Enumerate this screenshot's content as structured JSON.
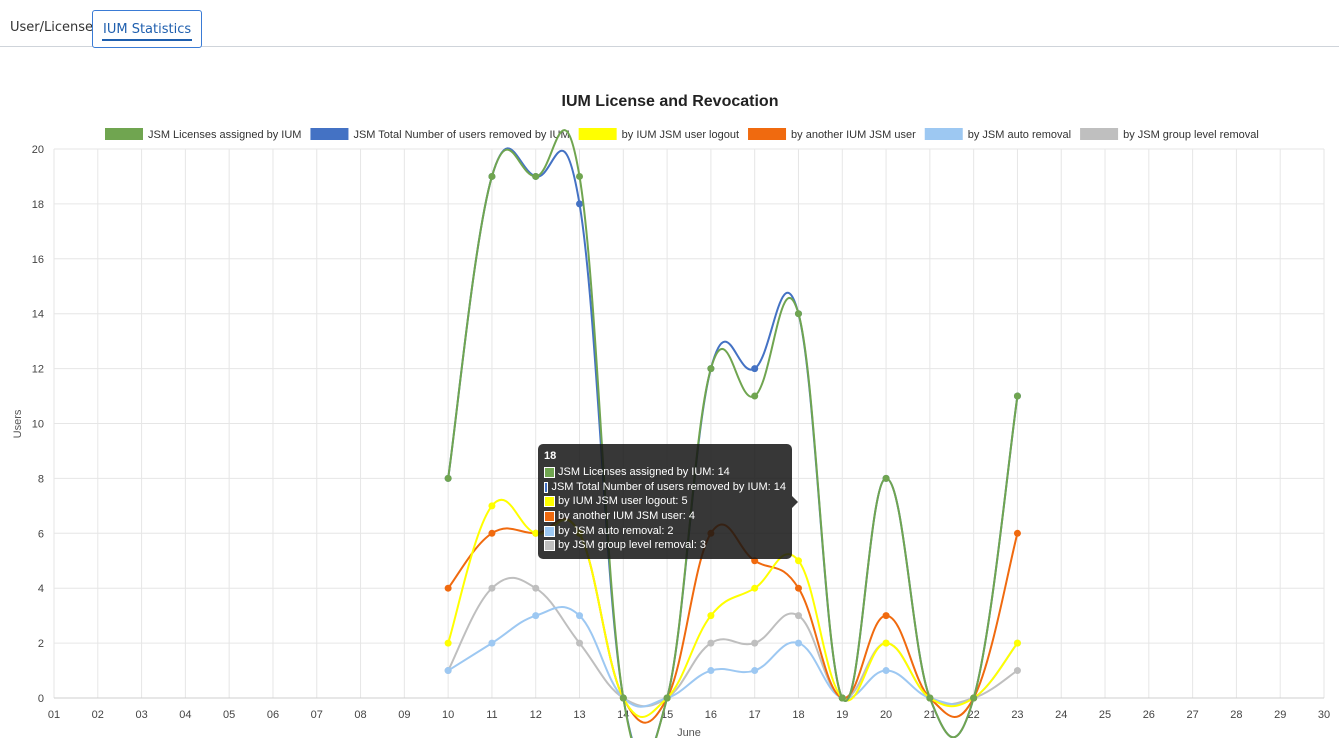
{
  "tabs": [
    {
      "label": "User/Licenses",
      "active": false
    },
    {
      "label": "IUM Statistics",
      "active": true
    }
  ],
  "chart_data": {
    "type": "line",
    "title": "IUM License and Revocation",
    "xlabel": "June",
    "ylabel": "Users",
    "ylim": [
      0,
      20
    ],
    "grid": true,
    "legend": "top",
    "categories": [
      "01",
      "02",
      "03",
      "04",
      "05",
      "06",
      "07",
      "08",
      "09",
      "10",
      "11",
      "12",
      "13",
      "14",
      "15",
      "16",
      "17",
      "18",
      "19",
      "20",
      "21",
      "22",
      "23",
      "24",
      "25",
      "26",
      "27",
      "28",
      "29",
      "30"
    ],
    "series": [
      {
        "name": "JSM Licenses assigned by IUM",
        "color": "#70a550",
        "values": [
          null,
          null,
          null,
          null,
          null,
          null,
          null,
          null,
          null,
          8,
          19,
          19,
          19,
          0,
          0,
          12,
          11,
          14,
          0,
          8,
          0,
          0,
          11,
          null,
          null,
          null,
          null,
          null,
          null,
          null
        ]
      },
      {
        "name": "JSM Total Number of users removed by IUM",
        "color": "#4472c4",
        "values": [
          null,
          null,
          null,
          null,
          null,
          null,
          null,
          null,
          null,
          8,
          19,
          19,
          18,
          0,
          0,
          12,
          12,
          14,
          0,
          8,
          0,
          0,
          11,
          null,
          null,
          null,
          null,
          null,
          null,
          null
        ]
      },
      {
        "name": "by IUM JSM user logout",
        "color": "#ffff00",
        "values": [
          null,
          null,
          null,
          null,
          null,
          null,
          null,
          null,
          null,
          2,
          7,
          6,
          6,
          0,
          0,
          3,
          4,
          5,
          0,
          2,
          0,
          0,
          2,
          null,
          null,
          null,
          null,
          null,
          null,
          null
        ]
      },
      {
        "name": "by another IUM JSM user",
        "color": "#f06a0f",
        "values": [
          null,
          null,
          null,
          null,
          null,
          null,
          null,
          null,
          null,
          4,
          6,
          6,
          6,
          0,
          0,
          6,
          5,
          4,
          0,
          3,
          0,
          0,
          6,
          null,
          null,
          null,
          null,
          null,
          null,
          null
        ]
      },
      {
        "name": "by JSM auto removal",
        "color": "#9dc8f2",
        "values": [
          null,
          null,
          null,
          null,
          null,
          null,
          null,
          null,
          null,
          1,
          2,
          3,
          3,
          0,
          0,
          1,
          1,
          2,
          0,
          1,
          0,
          0,
          2,
          null,
          null,
          null,
          null,
          null,
          null,
          null
        ]
      },
      {
        "name": "by JSM group level removal",
        "color": "#bfbfbf",
        "values": [
          null,
          null,
          null,
          null,
          null,
          null,
          null,
          null,
          null,
          1,
          4,
          4,
          2,
          0,
          0,
          2,
          2,
          3,
          0,
          2,
          0,
          0,
          1,
          null,
          null,
          null,
          null,
          null,
          null,
          null
        ]
      }
    ],
    "tooltip": {
      "title": "18",
      "rows": [
        {
          "text": "JSM Licenses assigned by IUM: 14",
          "color": "#70a550"
        },
        {
          "text": "JSM Total Number of users removed by IUM: 14",
          "color": "#4472c4"
        },
        {
          "text": "by IUM JSM user logout: 5",
          "color": "#ffff00"
        },
        {
          "text": "by another IUM JSM user: 4",
          "color": "#f06a0f"
        },
        {
          "text": "by JSM auto removal: 2",
          "color": "#9dc8f2"
        },
        {
          "text": "by JSM group level removal: 3",
          "color": "#bfbfbf"
        }
      ]
    }
  }
}
